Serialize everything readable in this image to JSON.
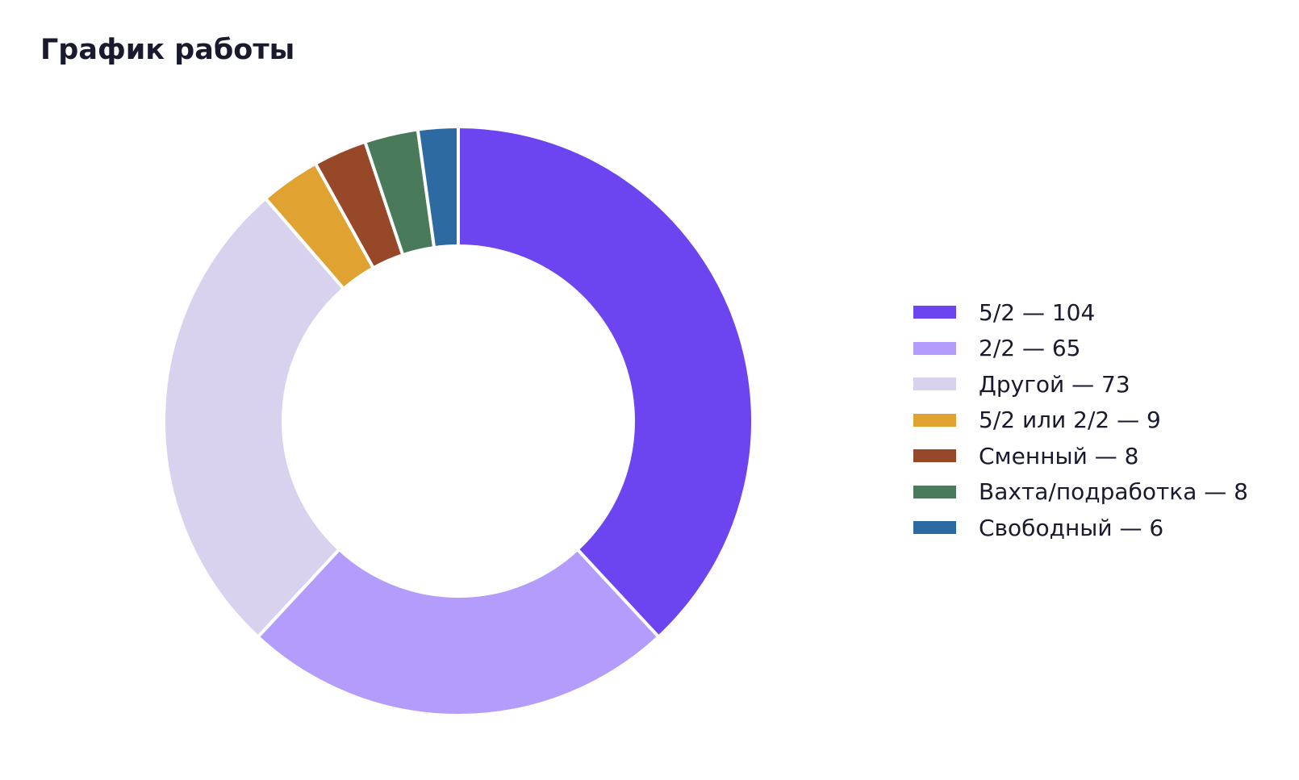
{
  "chart_data": {
    "type": "pie",
    "variant": "donut",
    "title": "График работы",
    "legend_position": "right",
    "slices": [
      {
        "label": "5/2",
        "value": 104,
        "legend_text": "5/2 — 104",
        "color": "#6c45f0"
      },
      {
        "label": "2/2",
        "value": 65,
        "legend_text": "2/2 — 65",
        "color": "#b49cfd"
      },
      {
        "label": "Другой",
        "value": 73,
        "legend_text": "Другой — 73",
        "color": "#d8d2ef"
      },
      {
        "label": "5/2 или 2/2",
        "value": 9,
        "legend_text": "5/2 или 2/2 — 9",
        "color": "#e0a230"
      },
      {
        "label": "Сменный",
        "value": 8,
        "legend_text": "Сменный — 8",
        "color": "#974828"
      },
      {
        "label": "Вахта/подработка",
        "value": 8,
        "legend_text": "Вахта/подработка — 8",
        "color": "#497b5b"
      },
      {
        "label": "Свободный",
        "value": 6,
        "legend_text": "Свободный — 6",
        "color": "#2c6aa1"
      }
    ]
  }
}
